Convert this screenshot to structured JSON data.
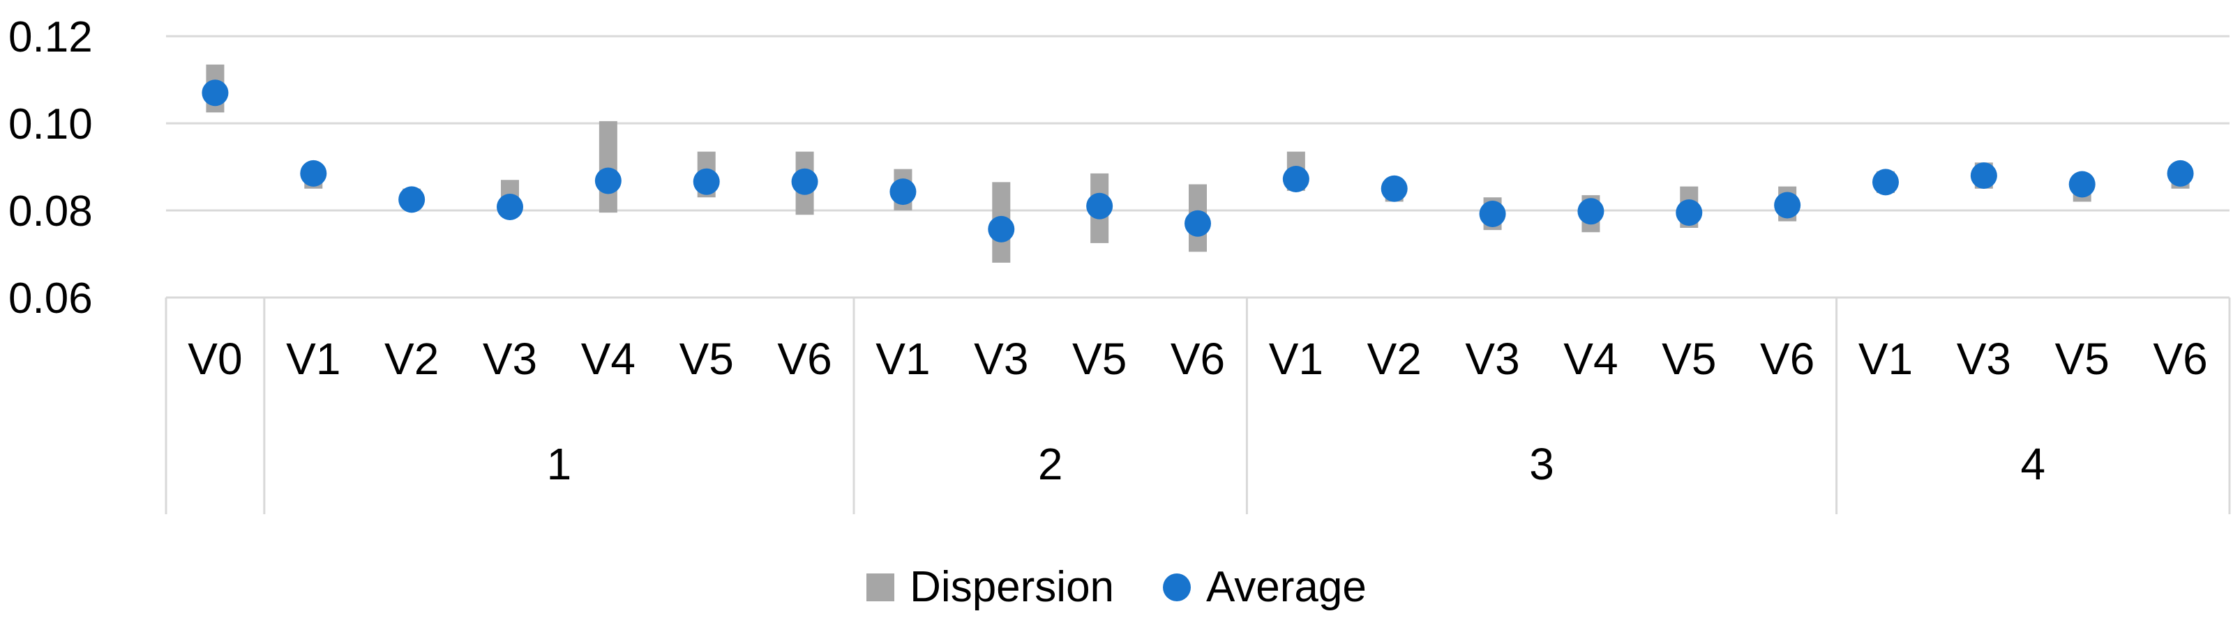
{
  "chart_data": {
    "type": "scatter",
    "title": "",
    "xlabel": "",
    "ylabel": "",
    "ylim": [
      0.06,
      0.12
    ],
    "yticks": [
      "0.06",
      "0.08",
      "0.10",
      "0.12"
    ],
    "grid": true,
    "legend_position": "bottom",
    "groups": [
      {
        "label": "",
        "categories": [
          "V0"
        ]
      },
      {
        "label": "1",
        "categories": [
          "V1",
          "V2",
          "V3",
          "V4",
          "V5",
          "V6"
        ]
      },
      {
        "label": "2",
        "categories": [
          "V1",
          "V3",
          "V5",
          "V6"
        ]
      },
      {
        "label": "3",
        "categories": [
          "V1",
          "V2",
          "V3",
          "V4",
          "V5",
          "V6"
        ]
      },
      {
        "label": "4",
        "categories": [
          "V1",
          "V3",
          "V5",
          "V6"
        ]
      }
    ],
    "series": [
      {
        "name": "Dispersion",
        "color": "#a6a6a6",
        "kind": "range",
        "low": [
          0.1025,
          0.085,
          0.0805,
          0.079,
          0.0795,
          0.083,
          0.079,
          0.08,
          0.068,
          0.0725,
          0.0705,
          0.0845,
          0.082,
          0.0755,
          0.075,
          0.076,
          0.0775,
          0.084,
          0.085,
          0.082,
          0.085
        ],
        "high": [
          0.1135,
          0.09,
          0.085,
          0.087,
          0.1005,
          0.0935,
          0.0935,
          0.0895,
          0.0865,
          0.0885,
          0.086,
          0.0935,
          0.087,
          0.083,
          0.0835,
          0.0855,
          0.0855,
          0.089,
          0.091,
          0.0875,
          0.0905
        ]
      },
      {
        "name": "Average",
        "color": "#1874cd",
        "kind": "point",
        "values": [
          0.107,
          0.0885,
          0.0825,
          0.0808,
          0.0868,
          0.0866,
          0.0866,
          0.0843,
          0.0757,
          0.081,
          0.077,
          0.0872,
          0.085,
          0.0792,
          0.0798,
          0.0795,
          0.0812,
          0.0865,
          0.088,
          0.086,
          0.0885
        ]
      }
    ]
  }
}
